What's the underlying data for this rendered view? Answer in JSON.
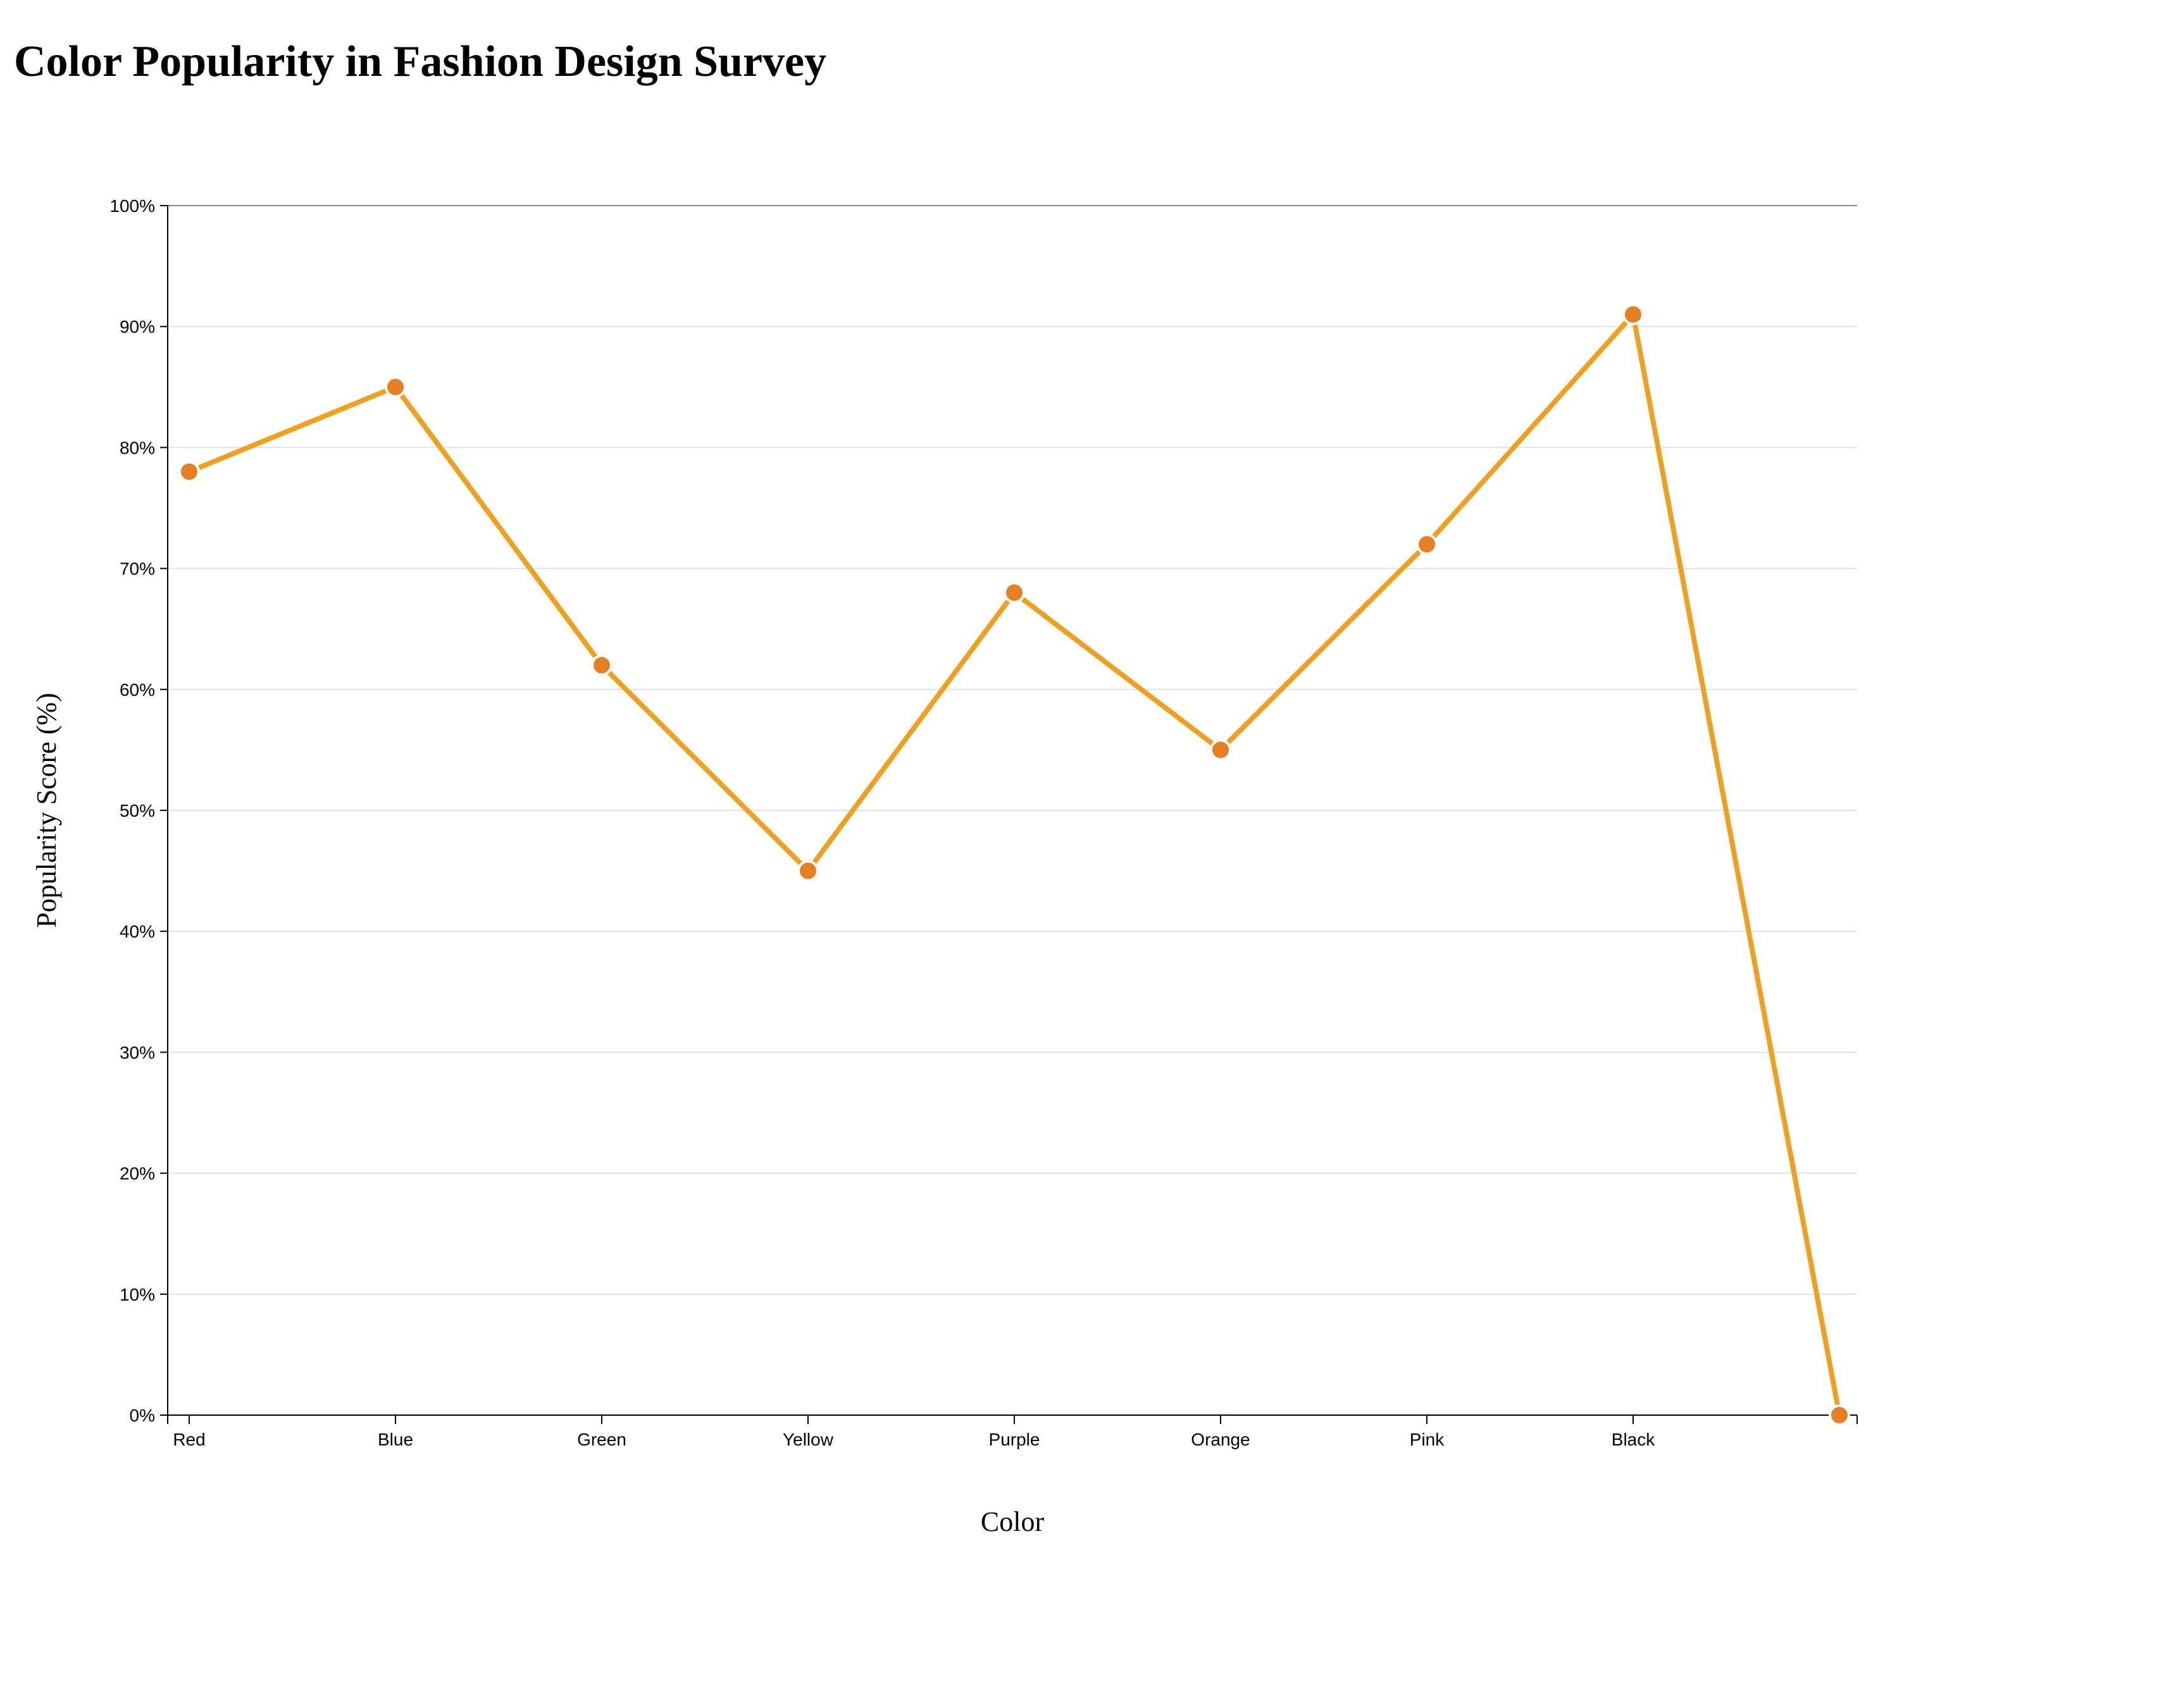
{
  "chart_data": {
    "type": "line",
    "title": "Color Popularity in Fashion Design Survey",
    "xlabel": "Color",
    "ylabel": "Popularity Score (%)",
    "categories": [
      "Red",
      "Blue",
      "Green",
      "Yellow",
      "Purple",
      "Orange",
      "Pink",
      "Black",
      ""
    ],
    "series": [
      {
        "values": [
          78,
          85,
          62,
          45,
          68,
          55,
          72,
          91,
          0
        ]
      }
    ],
    "ylim": [
      0,
      100
    ],
    "y_ticks": [
      0,
      10,
      20,
      30,
      40,
      50,
      60,
      70,
      80,
      90,
      100
    ],
    "y_tick_suffix": "%",
    "grid": true,
    "legend": "none",
    "colors": {
      "line": "#f0a020",
      "point": "#e67e22",
      "point_stroke": "#ffffff",
      "grid": "#e0e0e0",
      "axis": "#000000",
      "top_border": "#888888"
    }
  }
}
